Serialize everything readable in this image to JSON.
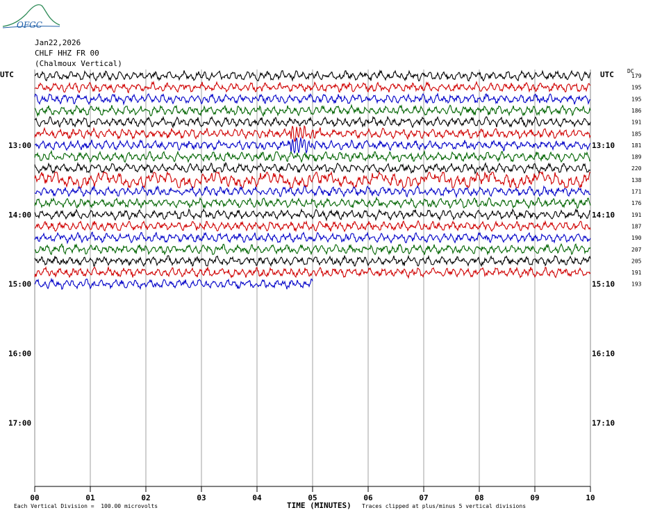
{
  "header": {
    "date": "Jan22,2026",
    "station": "CHLF HHZ FR 00",
    "name": "(Chalmoux Vertical)"
  },
  "logo": {
    "text": "OFGC",
    "icon": "ofgc-logo-icon"
  },
  "utc_label": "UTC",
  "dc_label": "DC",
  "footer": {
    "scale": "Each Vertical Division =  100.00 microvolts",
    "clip": "Traces clipped at plus/minus 5 vertical divisions"
  },
  "chart_data": {
    "type": "line",
    "title": "",
    "xlabel": "TIME (MINUTES)",
    "ylabel": "",
    "x_ticks": [
      "00",
      "01",
      "02",
      "03",
      "04",
      "05",
      "06",
      "07",
      "08",
      "09",
      "10"
    ],
    "xlim": [
      0,
      10
    ],
    "left_hour_labels": [
      "13:00",
      "14:00",
      "15:00",
      "16:00",
      "17:00"
    ],
    "right_hour_labels": [
      "13:10",
      "14:10",
      "15:10",
      "16:10",
      "17:10"
    ],
    "trace_colors": [
      "#000000",
      "#d00000",
      "#0000c8",
      "#006400"
    ],
    "dc_offsets": [
      179,
      195,
      195,
      186,
      191,
      185,
      181,
      189,
      220,
      138,
      171,
      176,
      191,
      187,
      190,
      207,
      205,
      191,
      193
    ],
    "last_trace_end_minute": 5.0,
    "grid": "vertical-minute-lines"
  }
}
